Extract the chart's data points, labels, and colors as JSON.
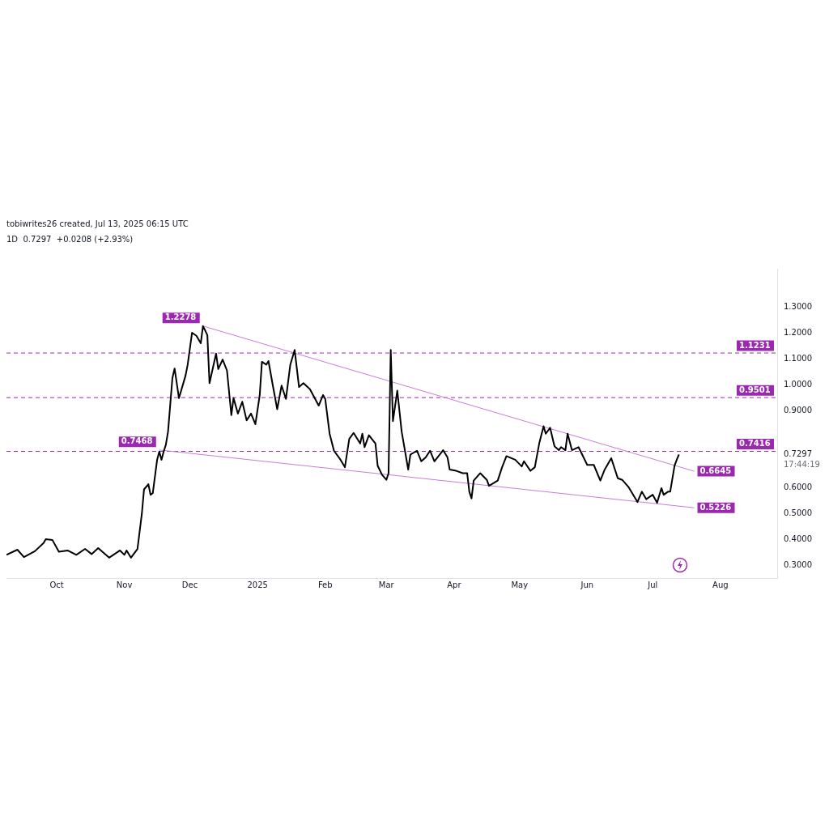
{
  "chart_data": {
    "type": "line",
    "title": "1D  0.7297  +0.0208 (+2.93%)",
    "subtitle": "tobiwrites26 created, Jul 13, 2025 06:15 UTC",
    "xlim": [
      "2024-09-08",
      "2025-08-27"
    ],
    "xticks": [
      {
        "value": "2024-10-01",
        "label": "Oct"
      },
      {
        "value": "2024-11-01",
        "label": "Nov"
      },
      {
        "value": "2024-12-01",
        "label": "Dec"
      },
      {
        "value": "2025-01-01",
        "label": "2025"
      },
      {
        "value": "2025-02-01",
        "label": "Feb"
      },
      {
        "value": "2025-03-01",
        "label": "Mar"
      },
      {
        "value": "2025-04-01",
        "label": "Apr"
      },
      {
        "value": "2025-05-01",
        "label": "May"
      },
      {
        "value": "2025-06-01",
        "label": "Jun"
      },
      {
        "value": "2025-07-01",
        "label": "Jul"
      },
      {
        "value": "2025-08-01",
        "label": "Aug"
      }
    ],
    "ylim": [
      0.25,
      1.45
    ],
    "yticks": [
      {
        "value": 0.3,
        "label": "0.3000"
      },
      {
        "value": 0.4,
        "label": "0.4000"
      },
      {
        "value": 0.5,
        "label": "0.5000"
      },
      {
        "value": 0.6,
        "label": "0.6000"
      },
      {
        "value": 0.7297,
        "label": "0.7297"
      },
      {
        "value": 0.9,
        "label": "0.9000"
      },
      {
        "value": 1.0,
        "label": "1.0000"
      },
      {
        "value": 1.1,
        "label": "1.1000"
      },
      {
        "value": 1.2,
        "label": "1.2000"
      },
      {
        "value": 1.3,
        "label": "1.3000"
      }
    ],
    "series": [
      {
        "type": "line",
        "color": "#000000",
        "x": [
          "2024-09-08",
          "2024-09-13",
          "2024-09-16",
          "2024-09-21",
          "2024-09-25",
          "2024-09-26",
          "2024-09-29",
          "2024-10-02",
          "2024-10-06",
          "2024-10-10",
          "2024-10-14",
          "2024-10-17",
          "2024-10-20",
          "2024-10-25",
          "2024-10-30",
          "2024-11-01",
          "2024-11-02",
          "2024-11-04",
          "2024-11-07",
          "2024-11-09",
          "2024-11-10",
          "2024-11-12",
          "2024-11-13",
          "2024-11-14",
          "2024-11-16",
          "2024-11-17",
          "2024-11-18",
          "2024-11-19",
          "2024-11-20",
          "2024-11-21",
          "2024-11-23",
          "2024-11-24",
          "2024-11-26",
          "2024-11-29",
          "2024-11-30",
          "2024-12-02",
          "2024-12-04",
          "2024-12-06",
          "2024-12-07",
          "2024-12-09",
          "2024-12-10",
          "2024-12-13",
          "2024-12-14",
          "2024-12-16",
          "2024-12-18",
          "2024-12-20",
          "2024-12-21",
          "2024-12-23",
          "2024-12-25",
          "2024-12-27",
          "2024-12-29",
          "2024-12-31",
          "2025-01-02",
          "2025-01-03",
          "2025-01-05",
          "2025-01-06",
          "2025-01-08",
          "2025-01-10",
          "2025-01-12",
          "2025-01-14",
          "2025-01-16",
          "2025-01-18",
          "2025-01-20",
          "2025-01-22",
          "2025-01-25",
          "2025-01-29",
          "2025-01-31",
          "2025-02-01",
          "2025-02-03",
          "2025-02-05",
          "2025-02-08",
          "2025-02-10",
          "2025-02-12",
          "2025-02-14",
          "2025-02-17",
          "2025-02-18",
          "2025-02-19",
          "2025-02-21",
          "2025-02-24",
          "2025-02-25",
          "2025-02-27",
          "2025-03-01",
          "2025-03-02",
          "2025-03-03",
          "2025-03-04",
          "2025-03-06",
          "2025-03-08",
          "2025-03-11",
          "2025-03-12",
          "2025-03-15",
          "2025-03-17",
          "2025-03-19",
          "2025-03-21",
          "2025-03-23",
          "2025-03-27",
          "2025-03-29",
          "2025-03-30",
          "2025-04-02",
          "2025-04-05",
          "2025-04-07",
          "2025-04-08",
          "2025-04-09",
          "2025-04-10",
          "2025-04-13",
          "2025-04-16",
          "2025-04-17",
          "2025-04-21",
          "2025-04-23",
          "2025-04-25",
          "2025-04-29",
          "2025-05-02",
          "2025-05-03",
          "2025-05-06",
          "2025-05-08",
          "2025-05-10",
          "2025-05-12",
          "2025-05-13",
          "2025-05-15",
          "2025-05-17",
          "2025-05-19",
          "2025-05-20",
          "2025-05-22",
          "2025-05-23",
          "2025-05-25",
          "2025-05-28",
          "2025-06-01",
          "2025-06-04",
          "2025-06-07",
          "2025-06-09",
          "2025-06-12",
          "2025-06-15",
          "2025-06-17",
          "2025-06-20",
          "2025-06-24",
          "2025-06-26",
          "2025-06-28",
          "2025-07-01",
          "2025-07-03",
          "2025-07-05",
          "2025-07-06",
          "2025-07-08",
          "2025-07-09",
          "2025-07-11",
          "2025-07-12",
          "2025-07-13"
        ],
        "values": [
          0.34,
          0.36,
          0.331,
          0.354,
          0.386,
          0.401,
          0.398,
          0.352,
          0.357,
          0.34,
          0.363,
          0.343,
          0.366,
          0.329,
          0.357,
          0.34,
          0.357,
          0.329,
          0.363,
          0.499,
          0.594,
          0.614,
          0.573,
          0.579,
          0.709,
          0.741,
          0.709,
          0.741,
          0.767,
          0.818,
          1.026,
          1.063,
          0.948,
          1.035,
          1.078,
          1.202,
          1.19,
          1.161,
          1.228,
          1.193,
          1.006,
          1.121,
          1.061,
          1.098,
          1.055,
          0.882,
          0.948,
          0.888,
          0.934,
          0.862,
          0.888,
          0.847,
          0.96,
          1.089,
          1.078,
          1.092,
          0.997,
          0.905,
          0.997,
          0.945,
          1.078,
          1.135,
          0.991,
          1.006,
          0.983,
          0.919,
          0.96,
          0.945,
          0.81,
          0.744,
          0.709,
          0.68,
          0.79,
          0.813,
          0.772,
          0.81,
          0.758,
          0.804,
          0.772,
          0.686,
          0.651,
          0.631,
          0.657,
          1.135,
          0.859,
          0.977,
          0.818,
          0.671,
          0.729,
          0.744,
          0.703,
          0.718,
          0.744,
          0.703,
          0.746,
          0.718,
          0.671,
          0.666,
          0.657,
          0.657,
          0.585,
          0.559,
          0.628,
          0.657,
          0.631,
          0.608,
          0.628,
          0.68,
          0.723,
          0.709,
          0.683,
          0.703,
          0.666,
          0.68,
          0.772,
          0.839,
          0.81,
          0.833,
          0.761,
          0.746,
          0.758,
          0.746,
          0.81,
          0.746,
          0.758,
          0.689,
          0.689,
          0.628,
          0.671,
          0.715,
          0.637,
          0.631,
          0.602,
          0.545,
          0.585,
          0.556,
          0.573,
          0.542,
          0.599,
          0.573,
          0.585,
          0.585,
          0.686,
          0.709,
          0.7297
        ]
      },
      {
        "type": "line",
        "color": "#c77dd7",
        "x": [
          "2024-12-07",
          "2025-07-20"
        ],
        "values": [
          1.2278,
          0.6645
        ],
        "value_labels": [
          "1.2278",
          "0.6645"
        ]
      },
      {
        "type": "line",
        "color": "#c77dd7",
        "x": [
          "2024-11-17",
          "2025-07-20"
        ],
        "values": [
          0.7468,
          0.5226
        ],
        "value_labels": [
          "0.7468",
          "0.5226"
        ]
      }
    ],
    "ref_lines": [
      {
        "axis": "y",
        "value": 1.1231,
        "label": "1.1231",
        "color": "#9c27b0",
        "line_style": "dashed"
      },
      {
        "axis": "y",
        "value": 0.9501,
        "label": "0.9501",
        "color": "#9c27b0",
        "line_style": "dashed"
      },
      {
        "axis": "y",
        "value": 0.7416,
        "label": "0.7416",
        "color": "#9c27b0",
        "line_style": "dashed"
      }
    ],
    "annotations": [
      "17:44:19"
    ]
  }
}
